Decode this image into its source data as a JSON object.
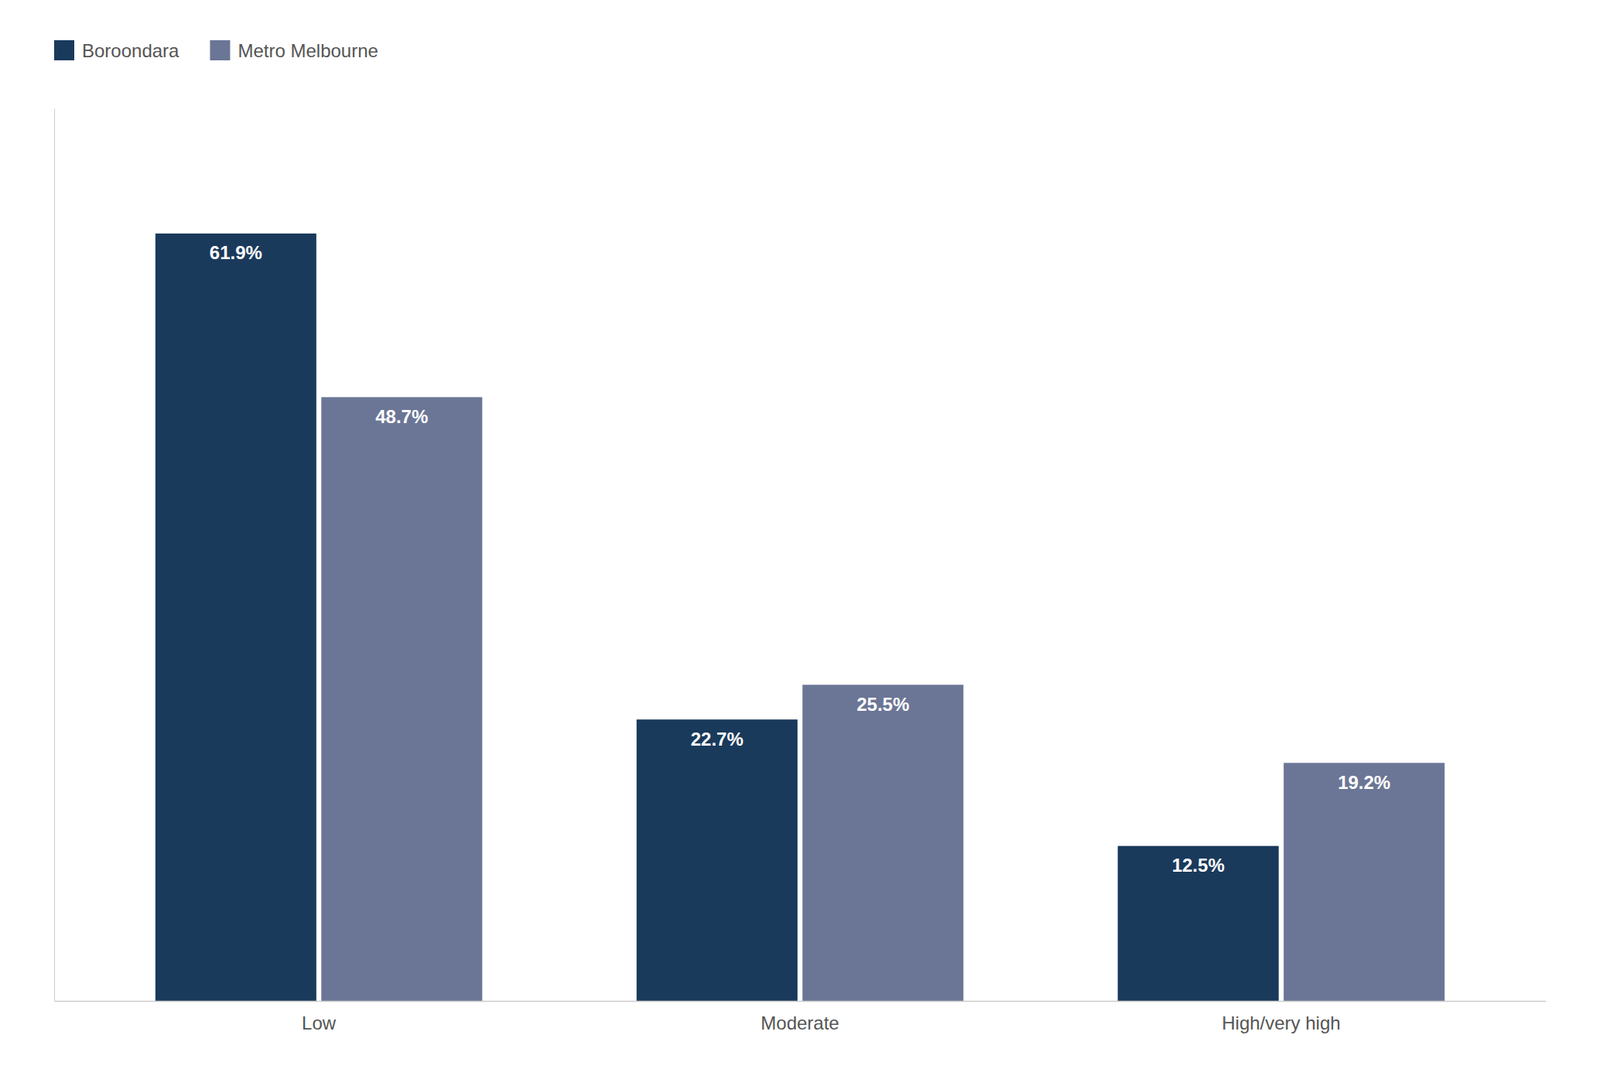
{
  "chart_data": {
    "type": "bar",
    "categories": [
      "Low",
      "Moderate",
      "High/very high"
    ],
    "series": [
      {
        "name": "Boroondara",
        "color": "#1a3a5c",
        "values": [
          61.9,
          22.7,
          12.5
        ],
        "value_labels": [
          "61.9%",
          "22.7%",
          "12.5%"
        ]
      },
      {
        "name": "Metro Melbourne",
        "color": "#6b7696",
        "values": [
          48.7,
          25.5,
          19.2
        ],
        "value_labels": [
          "48.7%",
          "25.5%",
          "19.2%"
        ]
      }
    ],
    "ylim": [
      0,
      72
    ],
    "grid": false,
    "legend": "upper left",
    "data_labels": true,
    "tick_labels": "x"
  }
}
